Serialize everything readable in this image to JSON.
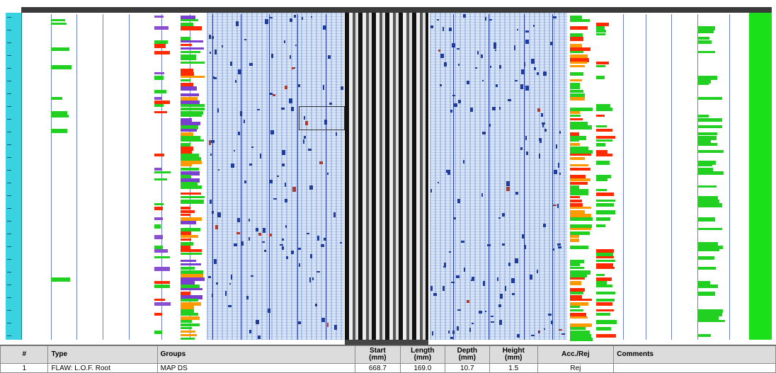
{
  "table": {
    "headers": [
      {
        "title": "#"
      },
      {
        "title": "Type"
      },
      {
        "title": "Groups"
      },
      {
        "title": "Start",
        "unit": "(mm)"
      },
      {
        "title": "Length",
        "unit": "(mm)"
      },
      {
        "title": "Depth",
        "unit": "(mm)"
      },
      {
        "title": "Height",
        "unit": "(mm)"
      },
      {
        "title": "Acc./Rej"
      },
      {
        "title": "Comments"
      }
    ],
    "rows": [
      [
        "1",
        "FLAW: L.O.F. Root",
        "MAP DS",
        "668.7",
        "169.0",
        "10.7",
        "1.5",
        "Rej"
      ]
    ]
  }
}
